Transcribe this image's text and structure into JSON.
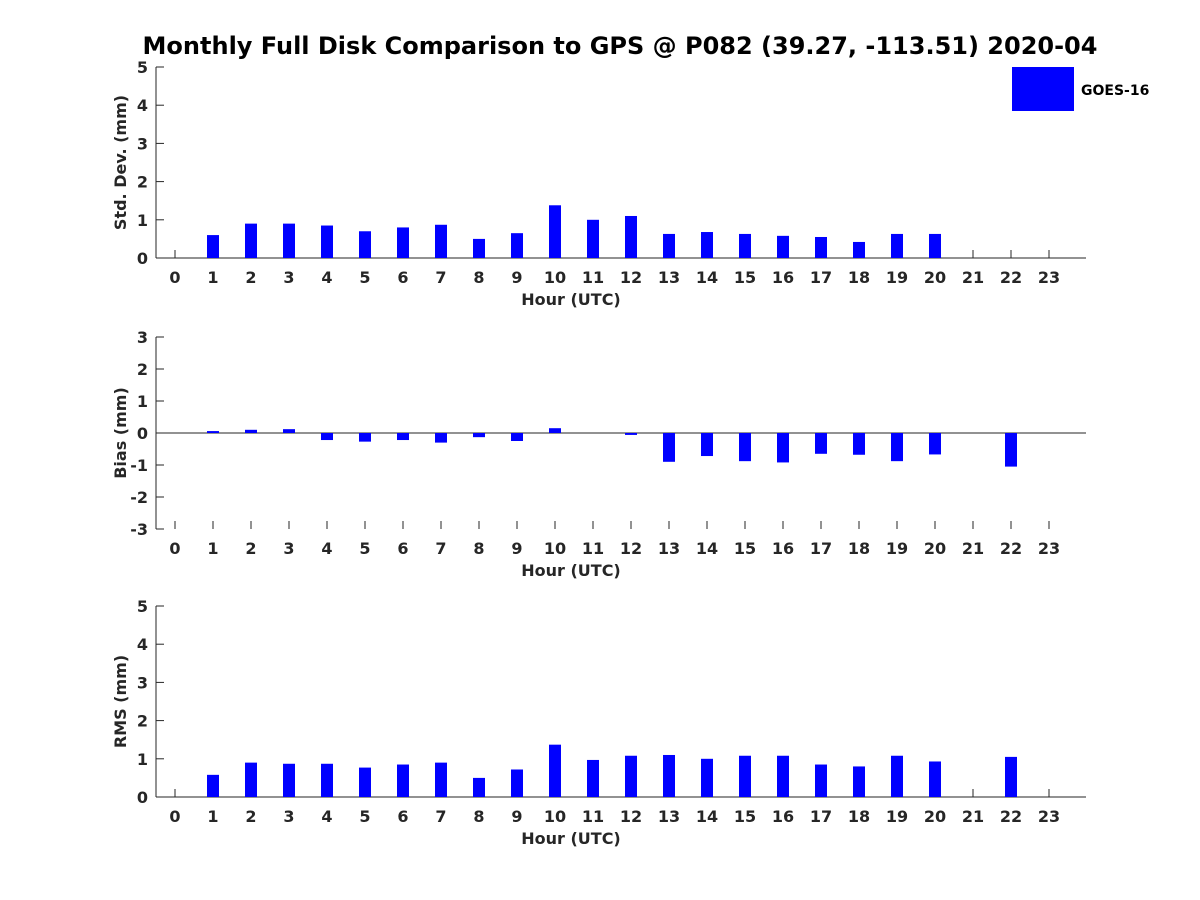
{
  "figure": {
    "title": "Monthly Full Disk Comparison to GPS @ P082 (39.27, -113.51) 2020-04",
    "legend": {
      "label": "GOES-16",
      "color": "#0000ff",
      "placement": "top-right"
    }
  },
  "chart_data": [
    {
      "type": "bar",
      "title": "",
      "xlabel": "Hour (UTC)",
      "ylabel": "Std. Dev. (mm)",
      "ylim": [
        0,
        5
      ],
      "yticks": [
        0,
        1,
        2,
        3,
        4,
        5
      ],
      "categories": [
        "0",
        "1",
        "2",
        "3",
        "4",
        "5",
        "6",
        "7",
        "8",
        "9",
        "10",
        "11",
        "12",
        "13",
        "14",
        "15",
        "16",
        "17",
        "18",
        "19",
        "20",
        "21",
        "22",
        "23"
      ],
      "series": [
        {
          "name": "GOES-16",
          "color": "#0000ff",
          "values": [
            null,
            0.6,
            0.9,
            0.9,
            0.85,
            0.7,
            0.8,
            0.87,
            0.5,
            0.65,
            1.38,
            1.0,
            1.1,
            0.63,
            0.68,
            0.63,
            0.58,
            0.55,
            0.42,
            0.63,
            0.63,
            null,
            null,
            null
          ]
        }
      ]
    },
    {
      "type": "bar",
      "title": "",
      "xlabel": "Hour (UTC)",
      "ylabel": "Bias (mm)",
      "ylim": [
        -3,
        3
      ],
      "yticks": [
        -3,
        -2,
        -1,
        0,
        1,
        2,
        3
      ],
      "categories": [
        "0",
        "1",
        "2",
        "3",
        "4",
        "5",
        "6",
        "7",
        "8",
        "9",
        "10",
        "11",
        "12",
        "13",
        "14",
        "15",
        "16",
        "17",
        "18",
        "19",
        "20",
        "21",
        "22",
        "23"
      ],
      "series": [
        {
          "name": "GOES-16",
          "color": "#0000ff",
          "values": [
            null,
            0.06,
            0.1,
            0.12,
            -0.22,
            -0.27,
            -0.22,
            -0.3,
            -0.13,
            -0.25,
            0.15,
            0.0,
            -0.06,
            -0.9,
            -0.72,
            -0.88,
            -0.92,
            -0.65,
            -0.68,
            -0.88,
            -0.67,
            null,
            -1.05,
            null
          ]
        }
      ]
    },
    {
      "type": "bar",
      "title": "",
      "xlabel": "Hour (UTC)",
      "ylabel": "RMS (mm)",
      "ylim": [
        0,
        5
      ],
      "yticks": [
        0,
        1,
        2,
        3,
        4,
        5
      ],
      "categories": [
        "0",
        "1",
        "2",
        "3",
        "4",
        "5",
        "6",
        "7",
        "8",
        "9",
        "10",
        "11",
        "12",
        "13",
        "14",
        "15",
        "16",
        "17",
        "18",
        "19",
        "20",
        "21",
        "22",
        "23"
      ],
      "series": [
        {
          "name": "GOES-16",
          "color": "#0000ff",
          "values": [
            null,
            0.58,
            0.9,
            0.87,
            0.87,
            0.77,
            0.85,
            0.9,
            0.5,
            0.72,
            1.37,
            0.97,
            1.08,
            1.1,
            1.0,
            1.08,
            1.08,
            0.85,
            0.8,
            1.08,
            0.93,
            null,
            1.05,
            null
          ]
        }
      ]
    }
  ]
}
